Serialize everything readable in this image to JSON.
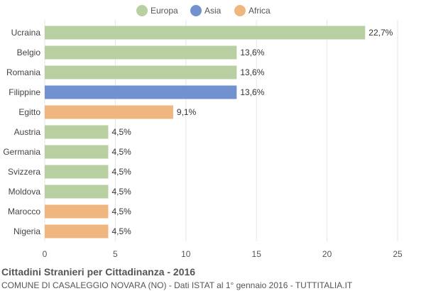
{
  "chart_data": {
    "type": "bar",
    "orientation": "horizontal",
    "title": "Cittadini Stranieri per Cittadinanza - 2016",
    "subtitle": "COMUNE DI CASALEGGIO NOVARA (NO) - Dati ISTAT al 1° gennaio 2016 - TUTTITALIA.IT",
    "categories": [
      "Ucraina",
      "Belgio",
      "Romania",
      "Filippine",
      "Egitto",
      "Austria",
      "Germania",
      "Svizzera",
      "Moldova",
      "Marocco",
      "Nigeria"
    ],
    "values": [
      22.7,
      13.6,
      13.6,
      13.6,
      9.1,
      4.5,
      4.5,
      4.5,
      4.5,
      4.5,
      4.5
    ],
    "value_labels": [
      "22,7%",
      "13,6%",
      "13,6%",
      "13,6%",
      "9,1%",
      "4,5%",
      "4,5%",
      "4,5%",
      "4,5%",
      "4,5%",
      "4,5%"
    ],
    "groups": [
      "Europa",
      "Europa",
      "Europa",
      "Asia",
      "Africa",
      "Europa",
      "Europa",
      "Europa",
      "Europa",
      "Africa",
      "Africa"
    ],
    "legend": [
      {
        "name": "Europa",
        "color": "#b8cfa2"
      },
      {
        "name": "Asia",
        "color": "#7292cf"
      },
      {
        "name": "Africa",
        "color": "#f0b680"
      }
    ],
    "legend_position": "top",
    "xlim": [
      0,
      25
    ],
    "x_ticks": [
      0,
      5,
      10,
      15,
      20,
      25
    ],
    "grid": true
  }
}
